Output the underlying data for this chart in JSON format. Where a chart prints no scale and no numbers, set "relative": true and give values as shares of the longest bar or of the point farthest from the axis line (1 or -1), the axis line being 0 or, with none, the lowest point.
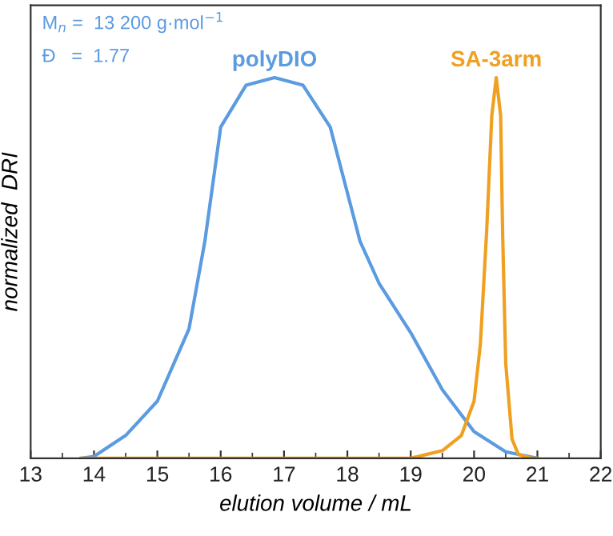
{
  "chart_data": {
    "type": "line",
    "relative": true,
    "xlabel": "elution volume / mL",
    "ylabel": "normalized  DRI",
    "xlim": [
      13,
      22
    ],
    "xticks": [
      13,
      14,
      15,
      16,
      17,
      18,
      19,
      20,
      21,
      22
    ],
    "grid": false,
    "legend": false,
    "marker": "none",
    "line_style": "solid",
    "annotations": [
      "M$_{n}$ =  13 200 g·mol$^{−1}$",
      "Đ   =  1.77"
    ],
    "series": [
      {
        "name": "polyDIO",
        "color": "#5b9be0",
        "x": [
          13.8,
          14.0,
          14.5,
          15.0,
          15.5,
          15.75,
          16.0,
          16.4,
          16.85,
          17.3,
          17.73,
          18.2,
          18.5,
          19.0,
          19.5,
          20.0,
          20.5,
          21.0
        ],
        "values": [
          0,
          0.005,
          0.06,
          0.15,
          0.34,
          0.57,
          0.87,
          0.98,
          1,
          0.98,
          0.87,
          0.57,
          0.46,
          0.33,
          0.18,
          0.07,
          0.017,
          0
        ]
      },
      {
        "name": "SA-3arm",
        "color": "#f0a020",
        "x": [
          13.8,
          19.0,
          19.5,
          19.8,
          20.0,
          20.1,
          20.2,
          20.28,
          20.35,
          20.42,
          20.45,
          20.5,
          20.6,
          20.7,
          20.9,
          21.0
        ],
        "values": [
          0,
          0,
          0.02,
          0.06,
          0.15,
          0.3,
          0.6,
          0.9,
          1,
          0.9,
          0.6,
          0.25,
          0.05,
          0.01,
          0,
          0
        ]
      }
    ]
  }
}
